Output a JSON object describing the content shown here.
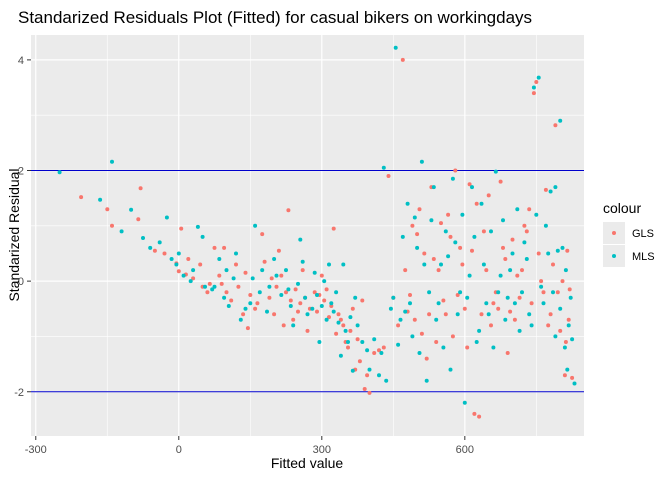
{
  "chart_data": {
    "type": "scatter",
    "title": "Standarized Residuals Plot (Fitted) for casual bikers on workingdays",
    "xlabel": "Fitted value",
    "ylabel": "Standarized Residual",
    "xlim": [
      -310,
      850
    ],
    "ylim": [
      -2.8,
      4.45
    ],
    "x_ticks": [
      -300,
      0,
      300,
      600
    ],
    "y_ticks": [
      -2,
      0,
      2,
      4
    ],
    "grid": true,
    "reference_lines": [
      2,
      -2
    ],
    "reference_line_color": "#0000CC",
    "panel_background": "#EBEBEB",
    "legend": {
      "title": "colour",
      "placement": "right",
      "entries": [
        {
          "name": "GLS",
          "color": "#F8766D"
        },
        {
          "name": "MLS",
          "color": "#00BFC4"
        }
      ]
    },
    "series": [
      {
        "name": "GLS",
        "color": "#F8766D",
        "points": [
          [
            -205,
            1.52
          ],
          [
            -150,
            1.3
          ],
          [
            -80,
            1.68
          ],
          [
            -85,
            1.12
          ],
          [
            -50,
            0.55
          ],
          [
            -5,
            0.32
          ],
          [
            0,
            0.18
          ],
          [
            5,
            0.95
          ],
          [
            15,
            0.12
          ],
          [
            30,
            0.05
          ],
          [
            50,
            -0.1
          ],
          [
            60,
            -0.2
          ],
          [
            75,
            0.6
          ],
          [
            90,
            -0.05
          ],
          [
            100,
            -0.2
          ],
          [
            110,
            -0.35
          ],
          [
            120,
            0.3
          ],
          [
            135,
            -0.6
          ],
          [
            145,
            -0.85
          ],
          [
            160,
            -0.5
          ],
          [
            175,
            0.85
          ],
          [
            190,
            -0.3
          ],
          [
            200,
            -0.6
          ],
          [
            210,
            0.55
          ],
          [
            220,
            -0.8
          ],
          [
            230,
            1.28
          ],
          [
            240,
            -0.7
          ],
          [
            250,
            -0.55
          ],
          [
            260,
            0.2
          ],
          [
            270,
            -0.9
          ],
          [
            285,
            -0.2
          ],
          [
            300,
            0.1
          ],
          [
            315,
            -0.65
          ],
          [
            330,
            -0.95
          ],
          [
            345,
            -0.8
          ],
          [
            355,
            -1.2
          ],
          [
            370,
            -1.6
          ],
          [
            380,
            -1.45
          ],
          [
            390,
            -1.95
          ],
          [
            400,
            -2.02
          ],
          [
            420,
            -1.25
          ],
          [
            440,
            1.9
          ],
          [
            470,
            4.0
          ],
          [
            480,
            -0.55
          ],
          [
            495,
            -0.7
          ],
          [
            505,
            1.3
          ],
          [
            520,
            -1.4
          ],
          [
            530,
            1.7
          ],
          [
            545,
            0.2
          ],
          [
            555,
            -0.35
          ],
          [
            565,
            1.2
          ],
          [
            580,
            2.0
          ],
          [
            590,
            0.6
          ],
          [
            600,
            -0.5
          ],
          [
            610,
            1.75
          ],
          [
            620,
            -2.4
          ],
          [
            630,
            -2.45
          ],
          [
            640,
            0.9
          ],
          [
            655,
            -0.8
          ],
          [
            665,
            -0.2
          ],
          [
            680,
            0.6
          ],
          [
            695,
            -0.55
          ],
          [
            710,
            0.1
          ],
          [
            725,
            1.0
          ],
          [
            735,
            1.3
          ],
          [
            745,
            3.4
          ],
          [
            750,
            3.6
          ],
          [
            760,
            0.0
          ],
          [
            770,
            1.65
          ],
          [
            780,
            -0.6
          ],
          [
            785,
            0.3
          ],
          [
            790,
            2.82
          ],
          [
            795,
            -0.2
          ],
          [
            800,
            -0.9
          ],
          [
            810,
            -1.7
          ],
          [
            815,
            0.55
          ],
          [
            820,
            -0.15
          ],
          [
            825,
            -1.75
          ],
          [
            -140,
            1.0
          ],
          [
            -30,
            0.5
          ],
          [
            20,
            0.4
          ],
          [
            45,
            0.3
          ],
          [
            65,
            -0.05
          ],
          [
            85,
            0.1
          ],
          [
            95,
            0.6
          ],
          [
            125,
            -0.1
          ],
          [
            140,
            0.15
          ],
          [
            150,
            -0.25
          ],
          [
            165,
            -0.4
          ],
          [
            180,
            0.35
          ],
          [
            195,
            0.05
          ],
          [
            205,
            -0.1
          ],
          [
            215,
            0.1
          ],
          [
            225,
            -0.2
          ],
          [
            235,
            -0.35
          ],
          [
            245,
            -0.15
          ],
          [
            255,
            -0.4
          ],
          [
            265,
            -0.3
          ],
          [
            275,
            -0.5
          ],
          [
            290,
            -0.55
          ],
          [
            295,
            -0.25
          ],
          [
            305,
            -0.35
          ],
          [
            310,
            -0.15
          ],
          [
            320,
            -0.45
          ],
          [
            325,
            0.95
          ],
          [
            335,
            -0.6
          ],
          [
            340,
            -0.7
          ],
          [
            350,
            -1.1
          ],
          [
            360,
            -0.9
          ],
          [
            365,
            -0.5
          ],
          [
            375,
            -1.05
          ],
          [
            385,
            -0.35
          ],
          [
            395,
            -1.7
          ],
          [
            410,
            -1.3
          ],
          [
            430,
            -1.2
          ],
          [
            450,
            -0.3
          ],
          [
            460,
            -0.8
          ],
          [
            475,
            0.2
          ],
          [
            485,
            -0.25
          ],
          [
            490,
            1.0
          ],
          [
            500,
            0.85
          ],
          [
            510,
            -0.95
          ],
          [
            515,
            0.5
          ],
          [
            525,
            -0.6
          ],
          [
            535,
            0.4
          ],
          [
            540,
            -1.1
          ],
          [
            550,
            1.05
          ],
          [
            560,
            -0.6
          ],
          [
            570,
            0.8
          ],
          [
            575,
            -1.0
          ],
          [
            585,
            -0.25
          ],
          [
            595,
            0.3
          ],
          [
            605,
            -1.2
          ],
          [
            615,
            0.55
          ],
          [
            625,
            1.4
          ],
          [
            635,
            -0.6
          ],
          [
            645,
            0.2
          ],
          [
            650,
            1.55
          ],
          [
            660,
            -0.4
          ],
          [
            670,
            -0.5
          ],
          [
            675,
            1.8
          ],
          [
            685,
            0.4
          ],
          [
            690,
            -1.3
          ],
          [
            700,
            0.75
          ],
          [
            705,
            -0.7
          ],
          [
            715,
            -0.3
          ],
          [
            720,
            0.2
          ],
          [
            730,
            0.9
          ],
          [
            740,
            -0.4
          ],
          [
            755,
            0.5
          ],
          [
            765,
            -0.2
          ],
          [
            775,
            -0.8
          ],
          [
            805,
            0.0
          ],
          [
            812,
            -1.1
          ],
          [
            818,
            -0.7
          ]
        ]
      },
      {
        "name": "MLS",
        "color": "#00BFC4",
        "points": [
          [
            -250,
            1.97
          ],
          [
            -165,
            1.47
          ],
          [
            -140,
            2.16
          ],
          [
            -100,
            1.29
          ],
          [
            -75,
            0.78
          ],
          [
            -60,
            0.6
          ],
          [
            -25,
            1.15
          ],
          [
            -15,
            0.4
          ],
          [
            -5,
            0.3
          ],
          [
            10,
            0.1
          ],
          [
            25,
            0.0
          ],
          [
            40,
            0.98
          ],
          [
            55,
            -0.1
          ],
          [
            70,
            -0.15
          ],
          [
            85,
            0.4
          ],
          [
            95,
            -0.3
          ],
          [
            105,
            -0.45
          ],
          [
            115,
            0.05
          ],
          [
            130,
            -0.7
          ],
          [
            150,
            -0.4
          ],
          [
            160,
            1.0
          ],
          [
            170,
            -0.2
          ],
          [
            185,
            -0.55
          ],
          [
            200,
            0.4
          ],
          [
            215,
            -0.25
          ],
          [
            225,
            0.2
          ],
          [
            240,
            -0.8
          ],
          [
            255,
            0.75
          ],
          [
            265,
            -0.3
          ],
          [
            280,
            -0.5
          ],
          [
            295,
            -1.1
          ],
          [
            305,
            0.0
          ],
          [
            320,
            -0.4
          ],
          [
            335,
            -0.75
          ],
          [
            340,
            -1.35
          ],
          [
            355,
            -1.1
          ],
          [
            365,
            -1.62
          ],
          [
            385,
            -1.1
          ],
          [
            400,
            -1.6
          ],
          [
            420,
            -1.7
          ],
          [
            430,
            2.05
          ],
          [
            450,
            -0.3
          ],
          [
            455,
            4.22
          ],
          [
            465,
            -0.7
          ],
          [
            480,
            1.4
          ],
          [
            490,
            -1.0
          ],
          [
            500,
            0.6
          ],
          [
            510,
            2.16
          ],
          [
            520,
            -1.8
          ],
          [
            535,
            1.7
          ],
          [
            545,
            -0.4
          ],
          [
            560,
            0.9
          ],
          [
            575,
            1.85
          ],
          [
            590,
            -0.2
          ],
          [
            600,
            -2.2
          ],
          [
            610,
            0.1
          ],
          [
            615,
            1.7
          ],
          [
            625,
            -1.1
          ],
          [
            640,
            0.3
          ],
          [
            650,
            -0.6
          ],
          [
            665,
            1.98
          ],
          [
            675,
            0.1
          ],
          [
            690,
            -0.3
          ],
          [
            700,
            0.5
          ],
          [
            715,
            -0.9
          ],
          [
            725,
            0.7
          ],
          [
            735,
            -0.6
          ],
          [
            745,
            3.5
          ],
          [
            755,
            3.68
          ],
          [
            765,
            -0.4
          ],
          [
            770,
            1.0
          ],
          [
            780,
            1.62
          ],
          [
            790,
            -1.0
          ],
          [
            795,
            0.55
          ],
          [
            800,
            2.9
          ],
          [
            805,
            0.6
          ],
          [
            810,
            -1.2
          ],
          [
            815,
            -1.6
          ],
          [
            825,
            -1.05
          ],
          [
            830,
            -1.85
          ],
          [
            -120,
            0.9
          ],
          [
            -40,
            0.7
          ],
          [
            0,
            0.5
          ],
          [
            30,
            0.2
          ],
          [
            50,
            0.8
          ],
          [
            75,
            -0.1
          ],
          [
            100,
            0.2
          ],
          [
            120,
            0.5
          ],
          [
            140,
            -0.5
          ],
          [
            155,
            0.05
          ],
          [
            175,
            0.2
          ],
          [
            190,
            -0.1
          ],
          [
            205,
            0.1
          ],
          [
            230,
            -0.15
          ],
          [
            235,
            -0.45
          ],
          [
            250,
            -0.05
          ],
          [
            260,
            0.35
          ],
          [
            270,
            -0.6
          ],
          [
            285,
            0.15
          ],
          [
            290,
            -0.25
          ],
          [
            300,
            -0.45
          ],
          [
            310,
            -0.7
          ],
          [
            315,
            0.3
          ],
          [
            325,
            -0.55
          ],
          [
            330,
            -0.2
          ],
          [
            345,
            0.3
          ],
          [
            350,
            -0.9
          ],
          [
            360,
            -0.65
          ],
          [
            370,
            -0.3
          ],
          [
            375,
            -0.8
          ],
          [
            395,
            -1.25
          ],
          [
            410,
            -1.05
          ],
          [
            425,
            -1.3
          ],
          [
            435,
            -1.8
          ],
          [
            445,
            -0.5
          ],
          [
            460,
            -1.15
          ],
          [
            470,
            0.8
          ],
          [
            475,
            -0.55
          ],
          [
            485,
            -0.4
          ],
          [
            495,
            1.15
          ],
          [
            505,
            -1.3
          ],
          [
            515,
            0.3
          ],
          [
            525,
            -0.2
          ],
          [
            530,
            1.1
          ],
          [
            540,
            -0.7
          ],
          [
            550,
            0.3
          ],
          [
            555,
            -1.2
          ],
          [
            565,
            0.45
          ],
          [
            570,
            -1.6
          ],
          [
            580,
            0.7
          ],
          [
            585,
            -0.6
          ],
          [
            595,
            1.2
          ],
          [
            605,
            -0.3
          ],
          [
            620,
            0.8
          ],
          [
            630,
            -0.9
          ],
          [
            635,
            1.4
          ],
          [
            645,
            -0.4
          ],
          [
            655,
            0.9
          ],
          [
            660,
            -1.2
          ],
          [
            670,
            -0.2
          ],
          [
            680,
            1.1
          ],
          [
            685,
            -0.7
          ],
          [
            695,
            0.2
          ],
          [
            705,
            -0.4
          ],
          [
            710,
            1.3
          ],
          [
            720,
            -0.2
          ],
          [
            730,
            0.4
          ],
          [
            740,
            -0.8
          ],
          [
            750,
            1.2
          ],
          [
            760,
            -0.1
          ],
          [
            775,
            0.5
          ],
          [
            785,
            -0.2
          ],
          [
            790,
            1.7
          ],
          [
            800,
            -0.5
          ],
          [
            812,
            0.2
          ],
          [
            818,
            -0.8
          ],
          [
            822,
            -0.3
          ]
        ]
      }
    ]
  }
}
